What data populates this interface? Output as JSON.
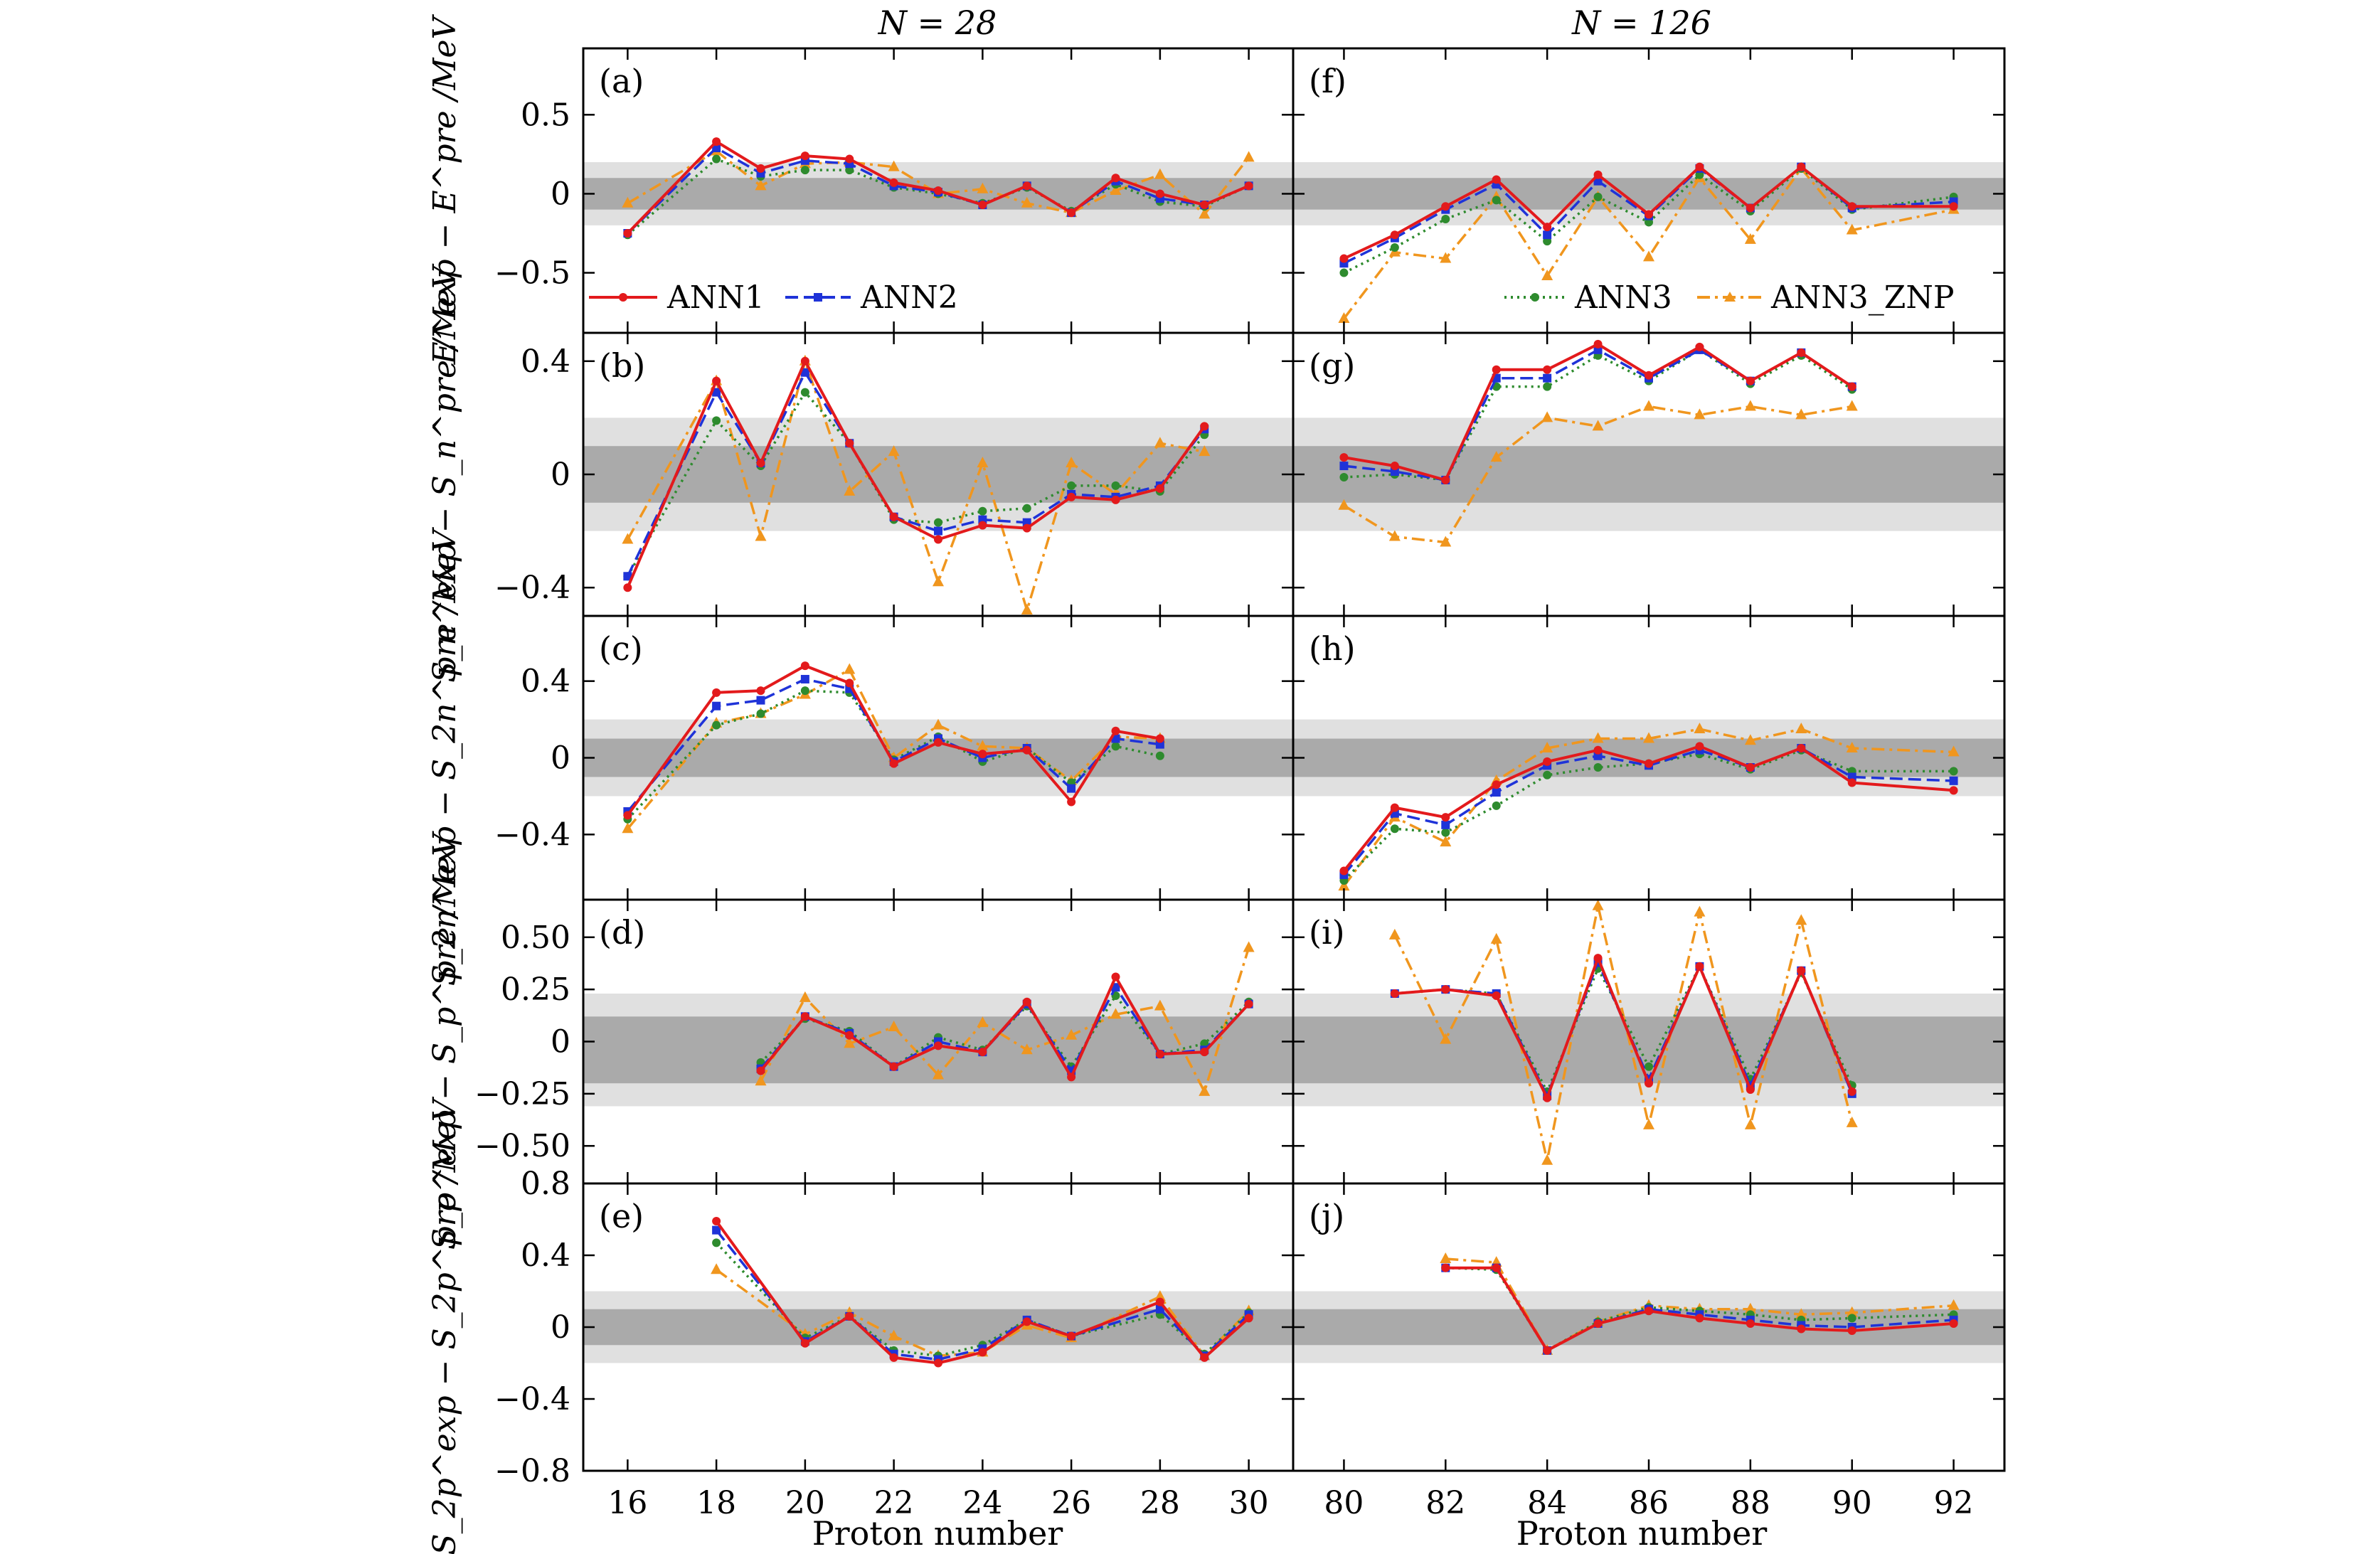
{
  "figure": {
    "column_titles": [
      "N = 28",
      "N = 126"
    ],
    "xlabel": "Proton number",
    "legend": [
      {
        "name": "ANN1",
        "color": "#e31a1c",
        "dash": "solid",
        "marker": "circle"
      },
      {
        "name": "ANN2",
        "color": "#1f33d8",
        "dash": "dash",
        "marker": "square"
      },
      {
        "name": "ANN3",
        "color": "#2e8b2e",
        "dash": "dot",
        "marker": "circle"
      },
      {
        "name": "ANN3_ZNP",
        "color": "#f0961e",
        "dash": "dashdot",
        "marker": "triangle"
      }
    ],
    "rows": [
      {
        "ylabel": "E^exp − E^pre /MeV",
        "ylim": [
          -0.88,
          0.92
        ],
        "ticks": [
          0.5,
          0,
          -0.5
        ],
        "tick_labels": [
          "0.5",
          "0",
          "−0.5"
        ],
        "bands": [
          0.1,
          0.2
        ]
      },
      {
        "ylabel": "S_n^exp − S_n^pre /MeV",
        "ylim": [
          -0.5,
          0.5
        ],
        "ticks": [
          0.4,
          0,
          -0.4
        ],
        "tick_labels": [
          "0.4",
          "0",
          "−0.4"
        ],
        "bands": [
          0.1,
          0.2
        ]
      },
      {
        "ylabel": "S_2n^exp − S_2n^pre /MeV",
        "ylim": [
          -0.74,
          0.74
        ],
        "ticks": [
          0.4,
          0,
          -0.4
        ],
        "tick_labels": [
          "0.4",
          "0",
          "−0.4"
        ],
        "bands": [
          0.1,
          0.2
        ]
      },
      {
        "ylabel": "S_p^exp − S_p^pre /MeV",
        "ylim": [
          -0.68,
          0.68
        ],
        "ticks": [
          0.5,
          0.25,
          0,
          -0.25,
          -0.5
        ],
        "tick_labels": [
          "0.50",
          "0.25",
          "0",
          "−0.25",
          "−0.50"
        ],
        "bands": [
          0.16,
          0.27
        ],
        "band_center": -0.04
      },
      {
        "ylabel": "S_2p^exp − S_2p^pre /MeV",
        "ylim": [
          -0.8,
          0.8
        ],
        "ticks": [
          0.8,
          0.4,
          0,
          -0.4,
          -0.8
        ],
        "tick_labels": [
          "0.8",
          "0.4",
          "0",
          "−0.4",
          "−0.8"
        ],
        "bands": [
          0.1,
          0.2
        ]
      }
    ],
    "columns": [
      {
        "xlim": [
          15,
          31
        ],
        "ticks": [
          16,
          18,
          20,
          22,
          24,
          26,
          28,
          30
        ],
        "tick_labels": [
          "16",
          "18",
          "20",
          "22",
          "24",
          "26",
          "28",
          "30"
        ]
      },
      {
        "xlim": [
          79,
          93
        ],
        "ticks": [
          80,
          82,
          84,
          86,
          88,
          90,
          92
        ],
        "tick_labels": [
          "80",
          "82",
          "84",
          "86",
          "88",
          "90",
          "92"
        ]
      }
    ]
  },
  "chart_data": [
    {
      "type": "line",
      "panel": "(a)",
      "title": "N = 28",
      "ylabel": "E^exp − E^pre /MeV",
      "x": [
        16,
        18,
        19,
        20,
        21,
        22,
        23,
        24,
        25,
        26,
        27,
        28,
        29,
        30
      ],
      "series": [
        {
          "name": "ANN1",
          "values": [
            -0.25,
            0.33,
            0.16,
            0.24,
            0.22,
            0.07,
            0.02,
            -0.07,
            0.05,
            -0.12,
            0.1,
            0.0,
            -0.07,
            0.05
          ]
        },
        {
          "name": "ANN2",
          "values": [
            -0.25,
            0.29,
            0.13,
            0.21,
            0.19,
            0.05,
            0.01,
            -0.07,
            0.05,
            -0.12,
            0.08,
            -0.03,
            -0.07,
            0.05
          ]
        },
        {
          "name": "ANN3",
          "values": [
            -0.26,
            0.22,
            0.11,
            0.15,
            0.15,
            0.04,
            0.0,
            -0.06,
            0.04,
            -0.11,
            0.06,
            -0.05,
            -0.08,
            0.05
          ]
        },
        {
          "name": "ANN3_ZNP",
          "values": [
            -0.06,
            0.27,
            0.05,
            0.19,
            0.2,
            0.17,
            0.0,
            0.03,
            -0.06,
            -0.12,
            0.02,
            0.12,
            -0.13,
            0.23
          ]
        }
      ]
    },
    {
      "type": "line",
      "panel": "(f)",
      "title": "N = 126",
      "ylabel": "E^exp − E^pre /MeV",
      "x": [
        80,
        81,
        82,
        83,
        84,
        85,
        86,
        87,
        88,
        89,
        90,
        92
      ],
      "series": [
        {
          "name": "ANN1",
          "values": [
            -0.41,
            -0.26,
            -0.08,
            0.09,
            -0.21,
            0.12,
            -0.13,
            0.17,
            -0.09,
            0.17,
            -0.08,
            -0.08
          ]
        },
        {
          "name": "ANN2",
          "values": [
            -0.44,
            -0.28,
            -0.1,
            0.06,
            -0.26,
            0.08,
            -0.14,
            0.16,
            -0.09,
            0.17,
            -0.09,
            -0.05
          ]
        },
        {
          "name": "ANN3",
          "values": [
            -0.5,
            -0.34,
            -0.16,
            -0.04,
            -0.3,
            -0.02,
            -0.18,
            0.12,
            -0.11,
            0.16,
            -0.1,
            -0.02
          ]
        },
        {
          "name": "ANN3_ZNP",
          "values": [
            -0.79,
            -0.37,
            -0.41,
            -0.02,
            -0.52,
            -0.02,
            -0.4,
            0.1,
            -0.29,
            0.16,
            -0.23,
            -0.1
          ]
        }
      ]
    },
    {
      "type": "line",
      "panel": "(b)",
      "ylabel": "S_n^exp − S_n^pre /MeV",
      "x": [
        16,
        18,
        19,
        20,
        21,
        22,
        23,
        24,
        25,
        26,
        27,
        28,
        29,
        30
      ],
      "series": [
        {
          "name": "ANN1",
          "values": [
            -0.4,
            0.33,
            0.04,
            0.4,
            0.11,
            -0.15,
            -0.23,
            -0.18,
            -0.19,
            -0.08,
            -0.09,
            -0.05,
            0.17,
            null
          ]
        },
        {
          "name": "ANN2",
          "values": [
            -0.36,
            0.29,
            0.04,
            0.36,
            0.11,
            -0.15,
            -0.2,
            -0.16,
            -0.17,
            -0.07,
            -0.08,
            -0.04,
            0.16,
            null
          ]
        },
        {
          "name": "ANN3",
          "values": [
            -0.36,
            0.19,
            0.03,
            0.29,
            0.11,
            -0.16,
            -0.17,
            -0.13,
            -0.12,
            -0.04,
            -0.04,
            -0.06,
            0.14,
            null
          ]
        },
        {
          "name": "ANN3_ZNP",
          "values": [
            -0.23,
            0.33,
            -0.22,
            0.4,
            -0.06,
            0.08,
            -0.38,
            0.04,
            -0.48,
            0.04,
            -0.07,
            0.11,
            0.08,
            null
          ]
        }
      ]
    },
    {
      "type": "line",
      "panel": "(g)",
      "ylabel": "S_n^exp − S_n^pre /MeV",
      "x": [
        80,
        81,
        82,
        83,
        84,
        85,
        86,
        87,
        88,
        89,
        90
      ],
      "series": [
        {
          "name": "ANN1",
          "values": [
            0.06,
            0.03,
            -0.02,
            0.37,
            0.37,
            0.46,
            0.35,
            0.45,
            0.33,
            0.43,
            0.31
          ]
        },
        {
          "name": "ANN2",
          "values": [
            0.03,
            0.01,
            -0.02,
            0.34,
            0.34,
            0.44,
            0.34,
            0.44,
            0.33,
            0.43,
            0.31
          ]
        },
        {
          "name": "ANN3",
          "values": [
            -0.01,
            0.0,
            -0.02,
            0.31,
            0.31,
            0.42,
            0.33,
            0.44,
            0.32,
            0.42,
            0.3
          ]
        },
        {
          "name": "ANN3_ZNP",
          "values": [
            -0.11,
            -0.22,
            -0.24,
            0.06,
            0.2,
            0.17,
            0.24,
            0.21,
            0.24,
            0.21,
            0.24
          ]
        }
      ]
    },
    {
      "type": "line",
      "panel": "(c)",
      "ylabel": "S_2n^exp − S_2n^pre /MeV",
      "x": [
        16,
        18,
        19,
        20,
        21,
        22,
        23,
        24,
        25,
        26,
        27,
        28
      ],
      "series": [
        {
          "name": "ANN1",
          "values": [
            -0.3,
            0.34,
            0.35,
            0.48,
            0.39,
            -0.03,
            0.08,
            0.02,
            0.04,
            -0.23,
            0.14,
            0.1
          ]
        },
        {
          "name": "ANN2",
          "values": [
            -0.28,
            0.27,
            0.3,
            0.41,
            0.36,
            -0.02,
            0.1,
            0.0,
            0.05,
            -0.16,
            0.1,
            0.07
          ]
        },
        {
          "name": "ANN3",
          "values": [
            -0.32,
            0.17,
            0.23,
            0.35,
            0.34,
            -0.01,
            0.11,
            -0.02,
            0.05,
            -0.13,
            0.06,
            0.01
          ]
        },
        {
          "name": "ANN3_ZNP",
          "values": [
            -0.37,
            0.18,
            0.23,
            0.33,
            0.46,
            0.0,
            0.17,
            0.06,
            0.05,
            -0.12,
            0.11,
            0.1
          ]
        }
      ]
    },
    {
      "type": "line",
      "panel": "(h)",
      "ylabel": "S_2n^exp − S_2n^pre /MeV",
      "x": [
        80,
        81,
        82,
        83,
        84,
        85,
        86,
        87,
        88,
        89,
        90,
        92
      ],
      "series": [
        {
          "name": "ANN1",
          "values": [
            -0.59,
            -0.26,
            -0.31,
            -0.14,
            -0.02,
            0.04,
            -0.03,
            0.06,
            -0.05,
            0.05,
            -0.13,
            -0.17
          ]
        },
        {
          "name": "ANN2",
          "values": [
            -0.61,
            -0.29,
            -0.35,
            -0.18,
            -0.04,
            0.01,
            -0.04,
            0.04,
            -0.05,
            0.05,
            -0.1,
            -0.12
          ]
        },
        {
          "name": "ANN3",
          "values": [
            -0.64,
            -0.37,
            -0.39,
            -0.25,
            -0.09,
            -0.05,
            -0.03,
            0.02,
            -0.06,
            0.04,
            -0.07,
            -0.07
          ]
        },
        {
          "name": "ANN3_ZNP",
          "values": [
            -0.67,
            -0.31,
            -0.44,
            -0.12,
            0.05,
            0.1,
            0.1,
            0.15,
            0.09,
            0.15,
            0.05,
            0.03
          ]
        }
      ]
    },
    {
      "type": "line",
      "panel": "(d)",
      "ylabel": "S_p^exp − S_p^pre /MeV",
      "x": [
        19,
        20,
        21,
        22,
        23,
        24,
        25,
        26,
        27,
        28,
        29,
        30
      ],
      "series": [
        {
          "name": "ANN1",
          "values": [
            -0.14,
            0.12,
            0.03,
            -0.12,
            -0.02,
            -0.05,
            0.19,
            -0.17,
            0.31,
            -0.06,
            -0.05,
            0.18
          ]
        },
        {
          "name": "ANN2",
          "values": [
            -0.13,
            0.12,
            0.04,
            -0.12,
            0.0,
            -0.05,
            0.18,
            -0.14,
            0.26,
            -0.06,
            -0.04,
            0.18
          ]
        },
        {
          "name": "ANN3",
          "values": [
            -0.1,
            0.11,
            0.05,
            -0.12,
            0.02,
            -0.04,
            0.17,
            -0.12,
            0.22,
            -0.06,
            -0.01,
            0.19
          ]
        },
        {
          "name": "ANN3_ZNP",
          "values": [
            -0.19,
            0.21,
            -0.01,
            0.07,
            -0.16,
            0.09,
            -0.04,
            0.03,
            0.13,
            0.17,
            -0.24,
            0.45
          ]
        }
      ]
    },
    {
      "type": "line",
      "panel": "(i)",
      "ylabel": "S_p^exp − S_p^pre /MeV",
      "x": [
        81,
        82,
        83,
        84,
        85,
        86,
        87,
        88,
        89,
        90
      ],
      "series": [
        {
          "name": "ANN1",
          "values": [
            0.23,
            0.25,
            0.22,
            -0.27,
            0.4,
            -0.2,
            0.36,
            -0.23,
            0.34,
            -0.24
          ]
        },
        {
          "name": "ANN2",
          "values": [
            0.23,
            0.25,
            0.23,
            -0.26,
            0.38,
            -0.18,
            0.36,
            -0.21,
            0.34,
            -0.25
          ]
        },
        {
          "name": "ANN3",
          "values": [
            0.23,
            0.25,
            0.23,
            -0.24,
            0.35,
            -0.12,
            0.36,
            -0.18,
            0.33,
            -0.21
          ]
        },
        {
          "name": "ANN3_ZNP",
          "values": [
            0.51,
            0.01,
            0.49,
            -0.57,
            0.65,
            -0.4,
            0.62,
            -0.4,
            0.58,
            -0.39
          ]
        }
      ]
    },
    {
      "type": "line",
      "panel": "(e)",
      "ylabel": "S_2p^exp − S_2p^pre /MeV",
      "x": [
        18,
        20,
        21,
        22,
        23,
        24,
        25,
        26,
        28,
        29,
        30
      ],
      "series": [
        {
          "name": "ANN1",
          "values": [
            0.59,
            -0.09,
            0.06,
            -0.17,
            -0.2,
            -0.14,
            0.03,
            -0.05,
            0.14,
            -0.17,
            0.05
          ]
        },
        {
          "name": "ANN2",
          "values": [
            0.54,
            -0.08,
            0.06,
            -0.15,
            -0.18,
            -0.12,
            0.04,
            -0.05,
            0.1,
            -0.16,
            0.07
          ]
        },
        {
          "name": "ANN3",
          "values": [
            0.47,
            -0.06,
            0.06,
            -0.13,
            -0.16,
            -0.1,
            0.04,
            -0.05,
            0.07,
            -0.15,
            0.08
          ]
        },
        {
          "name": "ANN3_ZNP",
          "values": [
            0.32,
            -0.04,
            0.08,
            -0.05,
            -0.16,
            -0.14,
            0.01,
            -0.06,
            0.17,
            -0.16,
            0.09
          ]
        }
      ]
    },
    {
      "type": "line",
      "panel": "(j)",
      "ylabel": "S_2p^exp − S_2p^pre /MeV",
      "x": [
        82,
        83,
        84,
        85,
        86,
        87,
        88,
        89,
        90,
        92
      ],
      "series": [
        {
          "name": "ANN1",
          "values": [
            0.33,
            0.33,
            -0.13,
            0.02,
            0.09,
            0.05,
            0.02,
            -0.01,
            -0.02,
            0.02
          ]
        },
        {
          "name": "ANN2",
          "values": [
            0.33,
            0.33,
            -0.13,
            0.02,
            0.1,
            0.07,
            0.04,
            0.01,
            0.0,
            0.04
          ]
        },
        {
          "name": "ANN3",
          "values": [
            0.33,
            0.32,
            -0.13,
            0.03,
            0.11,
            0.09,
            0.07,
            0.04,
            0.05,
            0.07
          ]
        },
        {
          "name": "ANN3_ZNP",
          "values": [
            0.38,
            0.36,
            -0.13,
            0.03,
            0.12,
            0.1,
            0.1,
            0.07,
            0.08,
            0.12
          ]
        }
      ]
    }
  ]
}
